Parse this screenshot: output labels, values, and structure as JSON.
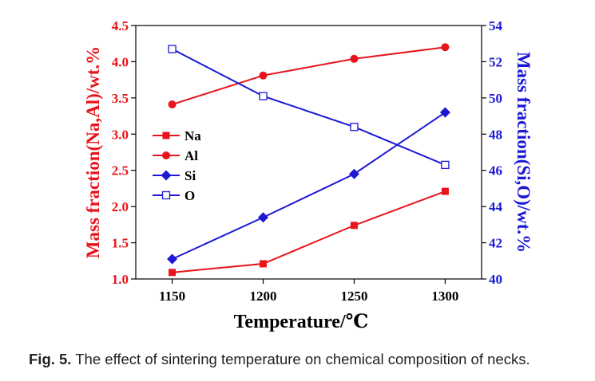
{
  "chart_data": {
    "type": "line",
    "x": [
      1150,
      1200,
      1250,
      1300
    ],
    "xlabel": "Temperature/℃",
    "xticks": [
      "1150",
      "1200",
      "1250",
      "1300"
    ],
    "xlim": [
      1130,
      1320
    ],
    "y_left": {
      "label": "Mass fraction(Na,Al)/wt.%",
      "ticks": [
        "1.0",
        "1.5",
        "2.0",
        "2.5",
        "3.0",
        "3.5",
        "4.0",
        "4.5"
      ],
      "lim": [
        1.0,
        4.5
      ],
      "color": "#e8141b"
    },
    "y_right": {
      "label": "Mass fraction(Si,O)/wt.%",
      "ticks": [
        "40",
        "42",
        "44",
        "46",
        "48",
        "50",
        "52",
        "54"
      ],
      "lim": [
        40,
        54
      ],
      "color": "#1c18d6"
    },
    "series": [
      {
        "name": "Na",
        "axis": "left",
        "marker": "square",
        "color": "#e8141b",
        "values": [
          1.09,
          1.21,
          1.74,
          2.21
        ]
      },
      {
        "name": "Al",
        "axis": "left",
        "marker": "circle",
        "color": "#e8141b",
        "values": [
          3.41,
          3.81,
          4.04,
          4.2
        ]
      },
      {
        "name": "Si",
        "axis": "right",
        "marker": "diamond",
        "color": "#1c18d6",
        "values": [
          41.1,
          43.4,
          45.8,
          49.2
        ]
      },
      {
        "name": "O",
        "axis": "right",
        "marker": "open-square",
        "color": "#1c18d6",
        "values": [
          52.7,
          50.1,
          48.4,
          46.3
        ]
      }
    ],
    "legend_position": "left-middle",
    "grid": false
  },
  "caption": {
    "label": "Fig. 5.",
    "text": " The effect of sintering temperature on chemical composition of necks."
  }
}
